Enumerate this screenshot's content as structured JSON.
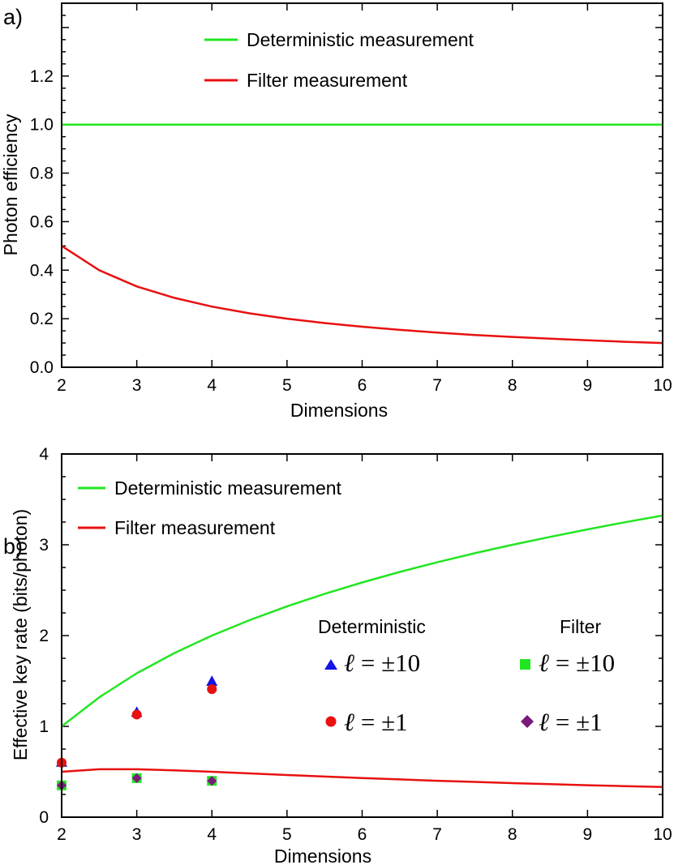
{
  "chart_data": [
    {
      "type": "line",
      "panel_label": "a)",
      "xlabel": "Dimensions",
      "ylabel": "Photon efficiency",
      "xlim": [
        2,
        10
      ],
      "ylim": [
        0,
        1.5
      ],
      "x_ticks": [
        "2",
        "3",
        "4",
        "5",
        "6",
        "7",
        "8",
        "9",
        "10"
      ],
      "y_ticks": [
        "0.0",
        "0.2",
        "0.4",
        "0.6",
        "0.8",
        "1.0",
        "1.2"
      ],
      "legend_position": "top-center",
      "series": [
        {
          "name": "Deterministic measurement",
          "color": "#22e622",
          "x": [
            2,
            3,
            4,
            5,
            6,
            7,
            8,
            9,
            10
          ],
          "y": [
            1.0,
            1.0,
            1.0,
            1.0,
            1.0,
            1.0,
            1.0,
            1.0,
            1.0
          ]
        },
        {
          "name": "Filter measurement",
          "color": "#e81010",
          "x": [
            2,
            2.5,
            3,
            3.5,
            4,
            4.5,
            5,
            5.5,
            6,
            6.5,
            7,
            7.5,
            8,
            8.5,
            9,
            9.5,
            10
          ],
          "y": [
            0.5,
            0.4,
            0.333,
            0.286,
            0.25,
            0.222,
            0.2,
            0.182,
            0.167,
            0.154,
            0.143,
            0.133,
            0.125,
            0.118,
            0.111,
            0.105,
            0.1
          ]
        }
      ]
    },
    {
      "type": "line",
      "panel_label": "b)",
      "xlabel": "Dimensions",
      "ylabel": "Effective key rate (bits/photon)",
      "xlim": [
        2,
        10
      ],
      "ylim": [
        0,
        4
      ],
      "x_ticks": [
        "2",
        "3",
        "4",
        "5",
        "6",
        "7",
        "8",
        "9",
        "10"
      ],
      "y_ticks": [
        "0",
        "1",
        "2",
        "3",
        "4"
      ],
      "legend_position": "top-left",
      "series": [
        {
          "name": "Deterministic measurement",
          "color": "#22e622",
          "x": [
            2,
            2.5,
            3,
            3.5,
            4,
            4.5,
            5,
            5.5,
            6,
            6.5,
            7,
            7.5,
            8,
            8.5,
            9,
            9.5,
            10
          ],
          "y": [
            1.0,
            1.32,
            1.585,
            1.807,
            2.0,
            2.17,
            2.322,
            2.459,
            2.585,
            2.701,
            2.807,
            2.907,
            3.0,
            3.087,
            3.17,
            3.248,
            3.322
          ]
        },
        {
          "name": "Filter measurement",
          "color": "#e81010",
          "x": [
            2,
            2.5,
            3,
            3.5,
            4,
            4.5,
            5,
            5.5,
            6,
            6.5,
            7,
            7.5,
            8,
            8.5,
            9,
            9.5,
            10
          ],
          "y": [
            0.5,
            0.528,
            0.528,
            0.516,
            0.5,
            0.482,
            0.464,
            0.447,
            0.431,
            0.416,
            0.401,
            0.388,
            0.375,
            0.364,
            0.352,
            0.342,
            0.332
          ]
        }
      ],
      "scatter_legend": {
        "deterministic_title": "Deterministic",
        "filter_title": "Filter",
        "ell": "ℓ",
        "eq_pm10": "= ±10",
        "eq_pm1": "= ±1"
      },
      "scatter_series": [
        {
          "group": "Deterministic",
          "label": "ℓ = ±10",
          "marker": "triangle",
          "color": "#1414e6",
          "x": [
            2,
            3,
            4
          ],
          "y": [
            0.6,
            1.15,
            1.49
          ]
        },
        {
          "group": "Deterministic",
          "label": "ℓ = ±1",
          "marker": "circle",
          "color": "#e81010",
          "x": [
            2,
            3,
            4
          ],
          "y": [
            0.6,
            1.13,
            1.41
          ]
        },
        {
          "group": "Filter",
          "label": "ℓ = ±10",
          "marker": "square",
          "color": "#22e622",
          "x": [
            2,
            3,
            4
          ],
          "y": [
            0.35,
            0.43,
            0.4
          ]
        },
        {
          "group": "Filter",
          "label": "ℓ = ±1",
          "marker": "diamond",
          "color": "#7a1a7a",
          "x": [
            2,
            3,
            4
          ],
          "y": [
            0.35,
            0.43,
            0.4
          ]
        }
      ]
    }
  ]
}
